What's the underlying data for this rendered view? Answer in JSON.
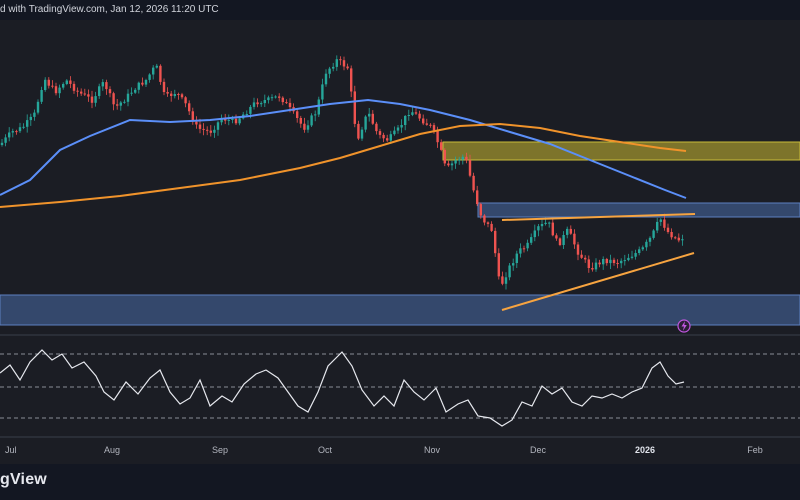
{
  "header": {
    "text": "d with TradingView.com, Jan 12, 2026 11:20 UTC"
  },
  "footer": {
    "brand": "gView"
  },
  "chart_data": {
    "type": "candlestick",
    "title": "",
    "xlabel": "",
    "ylabel": "",
    "x_ticks": [
      "Jul",
      "Aug",
      "Sep",
      "Oct",
      "Nov",
      "Dec",
      "2026",
      "Feb"
    ],
    "x_ticks_bold": [
      false,
      false,
      false,
      false,
      false,
      false,
      true,
      false
    ],
    "grid": false,
    "series": [
      {
        "color": "#5b8ff9"
      },
      {
        "color": "#f0932b"
      }
    ],
    "zones": [
      {
        "color": "#a69a2f"
      },
      {
        "color": "#3f5b8c"
      },
      {
        "color": "#3f5b8c"
      }
    ],
    "pattern": {
      "type": "triangle",
      "color": "#f7a440"
    },
    "oscillator": {
      "color": "#e6e8ee"
    },
    "colors": {
      "up": "#26a69a",
      "down": "#ef5350"
    },
    "marker_icon": "lightning-icon"
  }
}
